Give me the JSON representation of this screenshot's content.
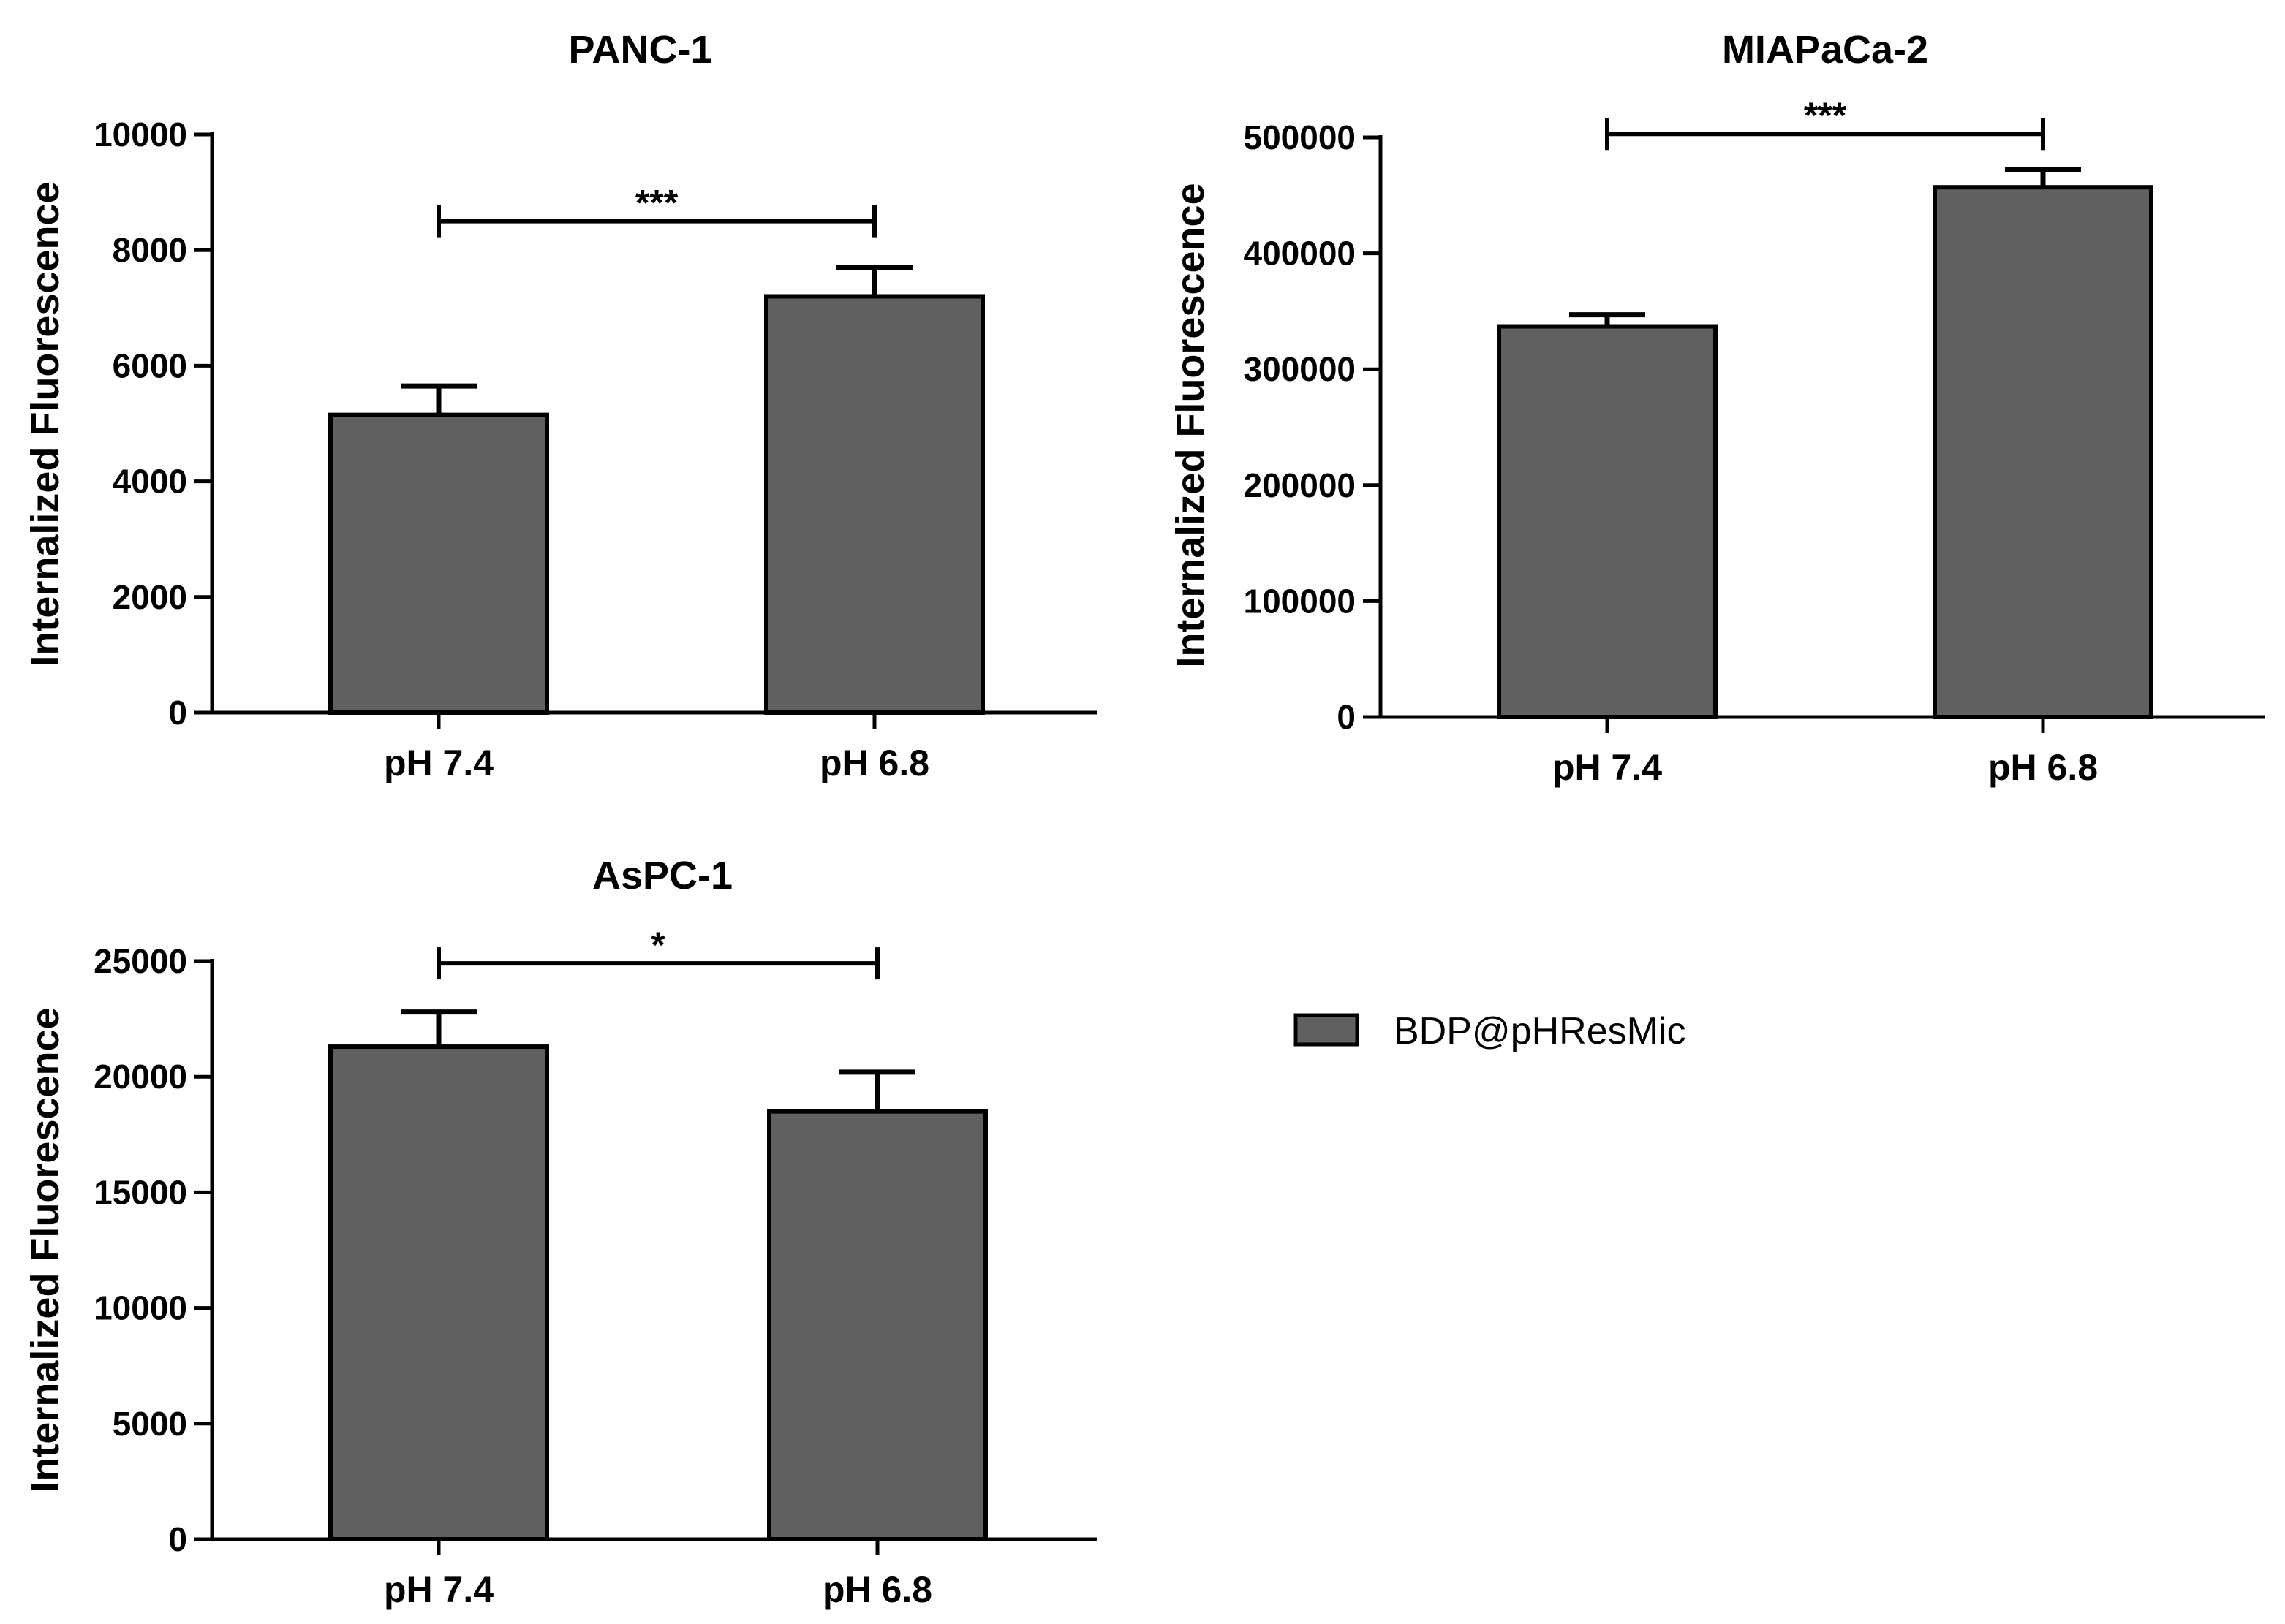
{
  "legend": {
    "label": "BDP@pHResMic",
    "color": "#606060"
  },
  "chart_data": [
    {
      "type": "bar",
      "title": "PANC-1",
      "ylabel": "Internalized Fluorescence",
      "categories": [
        "pH 7.4",
        "pH 6.8"
      ],
      "series": [
        {
          "name": "BDP@pHResMic",
          "values": [
            5150,
            7200
          ],
          "errors": [
            500,
            500
          ]
        }
      ],
      "ylim": [
        0,
        10000
      ],
      "yticks": [
        0,
        2000,
        4000,
        6000,
        8000,
        10000
      ],
      "significance": {
        "label": "***",
        "between": [
          0,
          1
        ],
        "y": 8500
      },
      "color": "#606060"
    },
    {
      "type": "bar",
      "title": "MIAPaCa-2",
      "ylabel": "Internalized Fluorescence",
      "categories": [
        "pH 7.4",
        "pH 6.8"
      ],
      "series": [
        {
          "name": "BDP@pHResMic",
          "values": [
            337000,
            457000
          ],
          "errors": [
            10000,
            15000
          ]
        }
      ],
      "ylim": [
        0,
        500000
      ],
      "yticks": [
        0,
        100000,
        200000,
        300000,
        400000,
        500000
      ],
      "significance": {
        "label": "***",
        "between": [
          0,
          1
        ],
        "y": 503000
      },
      "color": "#606060"
    },
    {
      "type": "bar",
      "title": "AsPC-1",
      "ylabel": "Internalized Fluorescence",
      "categories": [
        "pH 7.4",
        "pH 6.8"
      ],
      "series": [
        {
          "name": "BDP@pHResMic",
          "values": [
            21300,
            18500
          ],
          "errors": [
            1500,
            1700
          ]
        }
      ],
      "ylim": [
        0,
        25000
      ],
      "yticks": [
        0,
        5000,
        10000,
        15000,
        20000,
        25000
      ],
      "significance": {
        "label": "*",
        "between": [
          0,
          1
        ],
        "y": 24900
      },
      "color": "#606060"
    }
  ]
}
